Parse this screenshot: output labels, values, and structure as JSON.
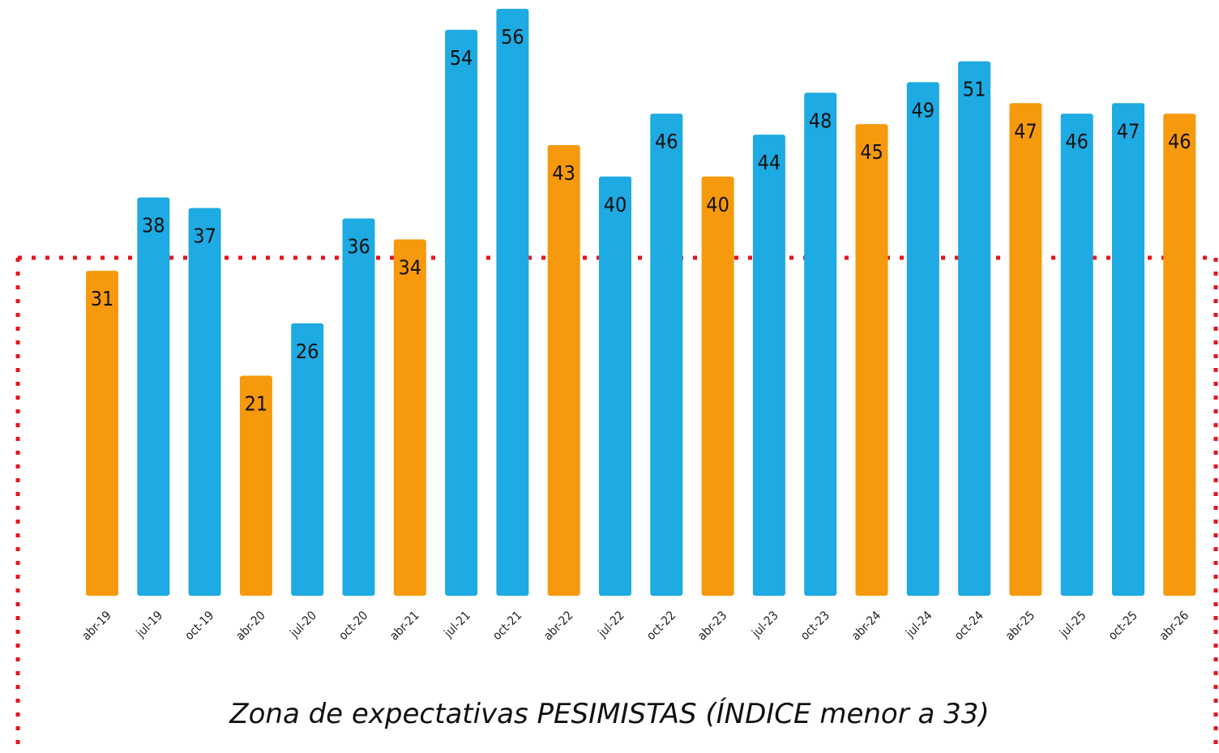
{
  "chart_data": {
    "type": "bar",
    "categories": [
      "abr-19",
      "jul-19",
      "oct-19",
      "abr-20",
      "jul-20",
      "oct-20",
      "abr-21",
      "jul-21",
      "oct-21",
      "abr-22",
      "jul-22",
      "oct-22",
      "abr-23",
      "jul-23",
      "oct-23",
      "abr-24",
      "jul-24",
      "oct-24",
      "abr-25",
      "jul-25",
      "oct-25",
      "abr-26"
    ],
    "values": [
      31,
      38,
      37,
      21,
      26,
      36,
      34,
      54,
      56,
      43,
      40,
      46,
      40,
      44,
      48,
      45,
      49,
      51,
      47,
      46,
      47,
      46
    ],
    "colors": [
      "#f7990c",
      "#1eaae2",
      "#1eaae2",
      "#f7990c",
      "#1eaae2",
      "#1eaae2",
      "#f7990c",
      "#1eaae2",
      "#1eaae2",
      "#f7990c",
      "#1eaae2",
      "#1eaae2",
      "#f7990c",
      "#1eaae2",
      "#1eaae2",
      "#f7990c",
      "#1eaae2",
      "#1eaae2",
      "#f7990c",
      "#1eaae2",
      "#1eaae2",
      "#f7990c"
    ],
    "annotation": "Zona de expectativas PESIMISTAS (ÍNDICE menor a 33)"
  }
}
